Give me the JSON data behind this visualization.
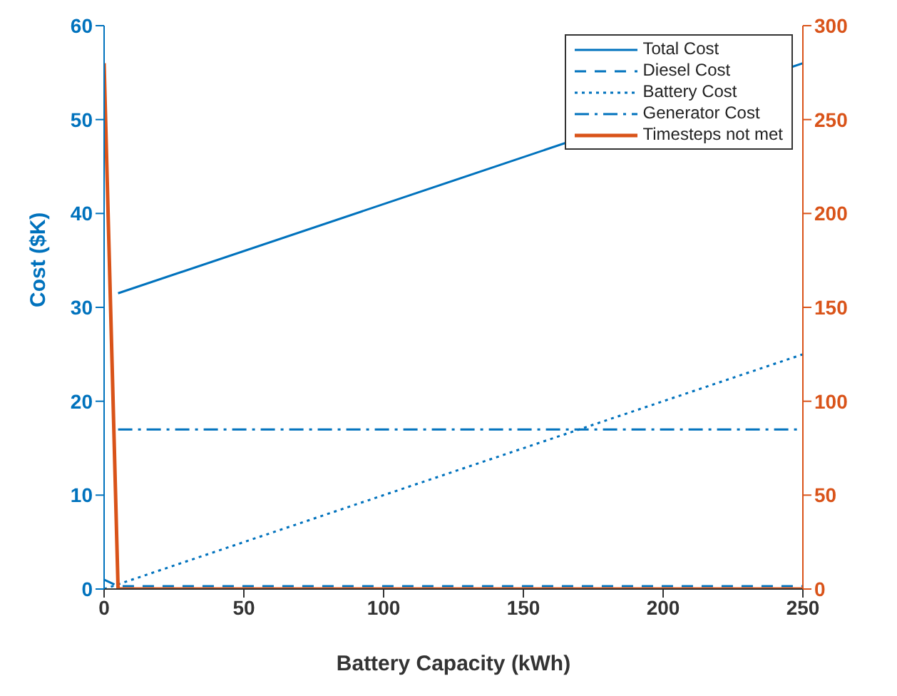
{
  "chart_data": {
    "type": "line",
    "xlabel": "Battery Capacity (kWh)",
    "ylabel": "Cost ($K)",
    "xlim": [
      0,
      250
    ],
    "xticks": [
      0,
      50,
      100,
      150,
      200,
      250
    ],
    "ylim": [
      0,
      60
    ],
    "yticks": [
      0,
      10,
      20,
      30,
      40,
      50,
      60
    ],
    "y2lim": [
      0,
      300
    ],
    "y2ticks": [
      0,
      50,
      100,
      150,
      200,
      250,
      300
    ],
    "legend": "top right",
    "grid": false,
    "marker": "none",
    "series": [
      {
        "name": "Total Cost",
        "color": "#0072bd",
        "line_style": "solid",
        "x": [
          5,
          250
        ],
        "values": [
          31.5,
          56
        ]
      },
      {
        "name": "Diesel Cost",
        "color": "#0072bd",
        "line_style": "dashed",
        "x": [
          0,
          5,
          250
        ],
        "values": [
          1,
          0.3,
          0.3
        ]
      },
      {
        "name": "Battery Cost",
        "color": "#0072bd",
        "line_style": "dotted",
        "x": [
          0,
          250
        ],
        "values": [
          0,
          25
        ]
      },
      {
        "name": "Generator Cost",
        "color": "#0072bd",
        "line_style": "dashdot",
        "x": [
          5,
          250
        ],
        "values": [
          17,
          17
        ]
      },
      {
        "name": "Timesteps not met",
        "color": "#d95319",
        "line_style": "solid",
        "axis": "y2",
        "x": [
          0,
          5,
          250
        ],
        "values": [
          280,
          0,
          0
        ]
      }
    ]
  }
}
